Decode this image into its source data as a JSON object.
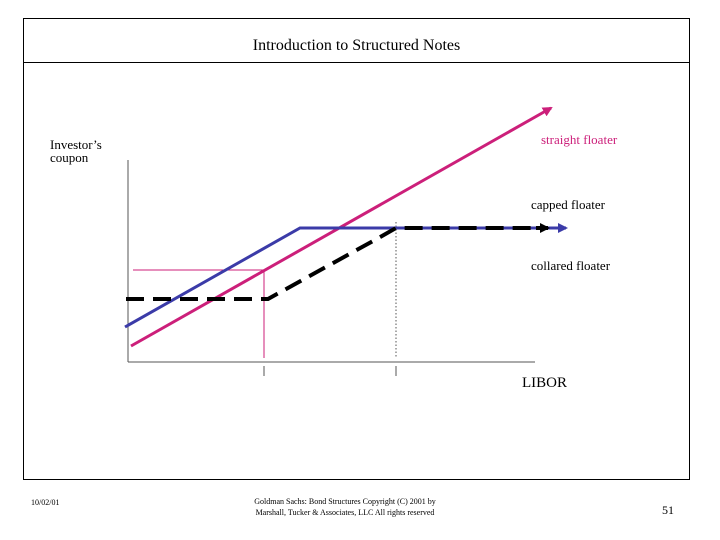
{
  "title": "Introduction to Structured Notes",
  "diagram": {
    "y_axis_label": "Investor’s coupon",
    "x_axis_label": "LIBOR",
    "curves": {
      "straight": {
        "label": "straight floater",
        "color": "#cc1f7a"
      },
      "capped": {
        "label": "capped floater",
        "color": "#3b3ba8"
      },
      "collared": {
        "label": "collared floater",
        "color": "#000000"
      }
    },
    "guide_color": "#cc1f7a"
  },
  "footer": {
    "date": "10/02/01",
    "copyright": "Goldman Sachs: Bond Structures Copyright (C) 2001 by Marshall, Tucker & Associates, LLC All rights reserved",
    "page": "51"
  }
}
